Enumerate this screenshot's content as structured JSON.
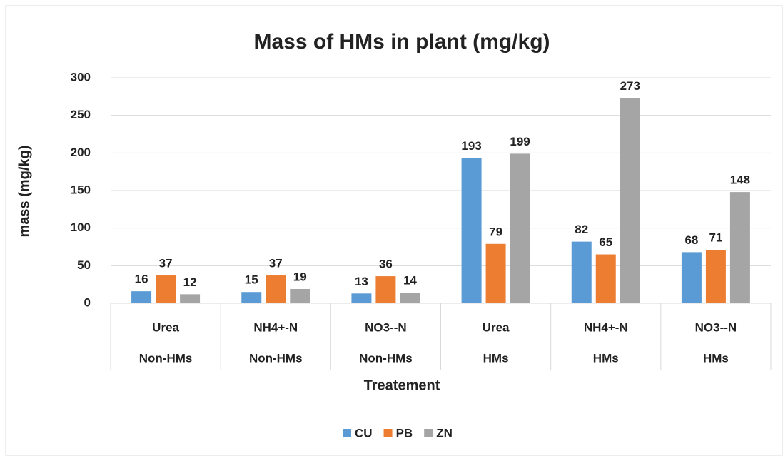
{
  "chart_data": {
    "type": "bar",
    "title": "Mass of HMs in plant (mg/kg)",
    "x_label": "Treatement",
    "y_label": "mass (mg/kg)",
    "categories": [
      "Urea",
      "NH4+-N",
      "NO3--N",
      "Urea",
      "NH4+-N",
      "NO3--N"
    ],
    "category_groups": [
      "Non-HMs",
      "Non-HMs",
      "Non-HMs",
      "HMs",
      "HMs",
      "HMs"
    ],
    "series": [
      {
        "name": "CU",
        "color": "#5b9bd5",
        "values": [
          16,
          15,
          13,
          193,
          82,
          68
        ]
      },
      {
        "name": "PB",
        "color": "#ed7d31",
        "values": [
          37,
          37,
          36,
          79,
          65,
          71
        ]
      },
      {
        "name": "ZN",
        "color": "#a5a5a5",
        "values": [
          12,
          19,
          14,
          199,
          273,
          148
        ]
      }
    ],
    "ylim": [
      0,
      300
    ],
    "yticks": [
      0,
      50,
      100,
      150,
      200,
      250,
      300
    ],
    "grid": true,
    "legend": "bottom"
  }
}
